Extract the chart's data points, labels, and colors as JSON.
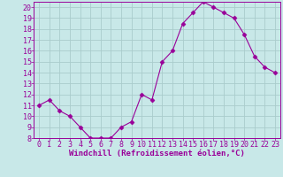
{
  "x": [
    0,
    1,
    2,
    3,
    4,
    5,
    6,
    7,
    8,
    9,
    10,
    11,
    12,
    13,
    14,
    15,
    16,
    17,
    18,
    19,
    20,
    21,
    22,
    23
  ],
  "y": [
    11,
    11.5,
    10.5,
    10,
    9,
    8,
    8,
    8,
    9,
    9.5,
    12,
    11.5,
    15,
    16,
    18.5,
    19.5,
    20.5,
    20,
    19.5,
    19,
    17.5,
    15.5,
    14.5,
    14
  ],
  "line_color": "#990099",
  "marker": "D",
  "marker_size": 2.5,
  "bg_color": "#c8e8e8",
  "grid_color": "#aacccc",
  "xlabel": "Windchill (Refroidissement éolien,°C)",
  "xlabel_color": "#990099",
  "xlabel_fontsize": 6.5,
  "tick_label_color": "#990099",
  "tick_fontsize": 6,
  "ylim": [
    8,
    20.5
  ],
  "xlim": [
    -0.5,
    23.5
  ],
  "yticks": [
    8,
    9,
    10,
    11,
    12,
    13,
    14,
    15,
    16,
    17,
    18,
    19,
    20
  ],
  "xticks": [
    0,
    1,
    2,
    3,
    4,
    5,
    6,
    7,
    8,
    9,
    10,
    11,
    12,
    13,
    14,
    15,
    16,
    17,
    18,
    19,
    20,
    21,
    22,
    23
  ]
}
